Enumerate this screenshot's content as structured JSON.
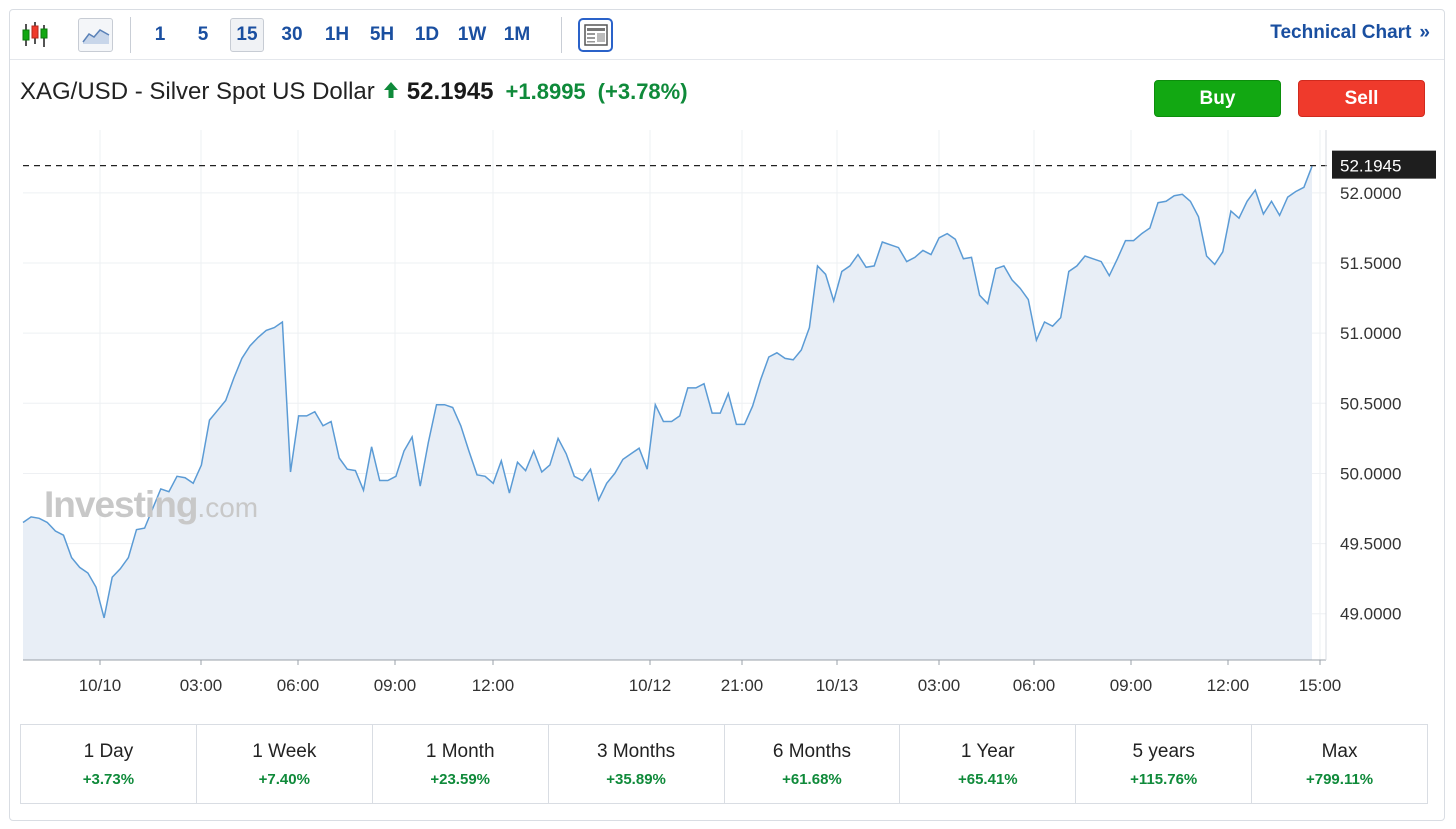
{
  "toolbar": {
    "intervals": [
      "1",
      "5",
      "15",
      "30",
      "1H",
      "5H",
      "1D",
      "1W",
      "1M"
    ],
    "active_interval": "15",
    "technical_chart_label": "Technical Chart",
    "technical_chart_arrow": "»",
    "icons": [
      "candlestick-icon",
      "area-chart-icon",
      "news-layout-icon"
    ]
  },
  "instrument": {
    "name": "XAG/USD - Silver Spot US Dollar",
    "price": "52.1945",
    "change": "+1.8995",
    "change_pct": "(+3.78%)",
    "direction_icon": "up-arrow-icon"
  },
  "actions": {
    "buy_label": "Buy",
    "sell_label": "Sell"
  },
  "watermark": {
    "brand": "Investing",
    "suffix": ".com"
  },
  "colors": {
    "line": "#5b9bd5",
    "fill": "#e8eef6",
    "positive": "#0f8a3a",
    "buy": "#12a812",
    "sell": "#ef3a2c",
    "link": "#1a4fa0"
  },
  "chart_data": {
    "type": "area",
    "title": "",
    "xlabel": "",
    "ylabel": "",
    "ylim": [
      48.67,
      52.42
    ],
    "grid": true,
    "y_ticks": [
      "49.0000",
      "49.5000",
      "50.0000",
      "50.5000",
      "51.0000",
      "51.5000",
      "52.0000"
    ],
    "x_ticks": [
      "10/10",
      "03:00",
      "06:00",
      "09:00",
      "12:00",
      "10/12",
      "21:00",
      "10/13",
      "03:00",
      "06:00",
      "09:00",
      "12:00",
      "15:00"
    ],
    "last_value": "52.1945",
    "series": [
      {
        "values": [
          49.65,
          49.69,
          49.68,
          49.65,
          49.59,
          49.56,
          49.4,
          49.33,
          49.29,
          49.19,
          48.97,
          49.26,
          49.32,
          49.4,
          49.6,
          49.61,
          49.75,
          49.89,
          49.87,
          49.98,
          49.97,
          49.93,
          50.06,
          50.38,
          50.45,
          50.52,
          50.68,
          50.82,
          50.91,
          50.97,
          51.02,
          51.04,
          51.08,
          50.01,
          50.41,
          50.41,
          50.44,
          50.34,
          50.37,
          50.11,
          50.03,
          50.02,
          49.88,
          50.19,
          49.95,
          49.95,
          49.98,
          50.16,
          50.26,
          49.91,
          50.22,
          50.49,
          50.49,
          50.47,
          50.34,
          50.16,
          49.99,
          49.98,
          49.93,
          50.09,
          49.86,
          50.08,
          50.02,
          50.16,
          50.01,
          50.06,
          50.25,
          50.14,
          49.98,
          49.95,
          50.03,
          49.81,
          49.93,
          50.0,
          50.1,
          50.14,
          50.18,
          50.03,
          50.49,
          50.37,
          50.37,
          50.41,
          50.61,
          50.61,
          50.64,
          50.43,
          50.43,
          50.57,
          50.35,
          50.35,
          50.48,
          50.67,
          50.83,
          50.86,
          50.82,
          50.81,
          50.88,
          51.04,
          51.48,
          51.42,
          51.23,
          51.44,
          51.48,
          51.56,
          51.47,
          51.48,
          51.65,
          51.63,
          51.61,
          51.51,
          51.54,
          51.59,
          51.56,
          51.68,
          51.71,
          51.67,
          51.53,
          51.54,
          51.27,
          51.21,
          51.46,
          51.48,
          51.38,
          51.32,
          51.24,
          50.95,
          51.08,
          51.05,
          51.11,
          51.44,
          51.48,
          51.55,
          51.53,
          51.51,
          51.41,
          51.53,
          51.66,
          51.66,
          51.71,
          51.75,
          51.93,
          51.94,
          51.98,
          51.99,
          51.94,
          51.83,
          51.55,
          51.49,
          51.58,
          51.87,
          51.82,
          51.94,
          52.02,
          51.85,
          51.94,
          51.84,
          51.97,
          52.01,
          52.04,
          52.19
        ]
      }
    ]
  },
  "performance": [
    {
      "label": "1 Day",
      "value": "+3.73%"
    },
    {
      "label": "1 Week",
      "value": "+7.40%"
    },
    {
      "label": "1 Month",
      "value": "+23.59%"
    },
    {
      "label": "3 Months",
      "value": "+35.89%"
    },
    {
      "label": "6 Months",
      "value": "+61.68%"
    },
    {
      "label": "1 Year",
      "value": "+65.41%"
    },
    {
      "label": "5 years",
      "value": "+115.76%"
    },
    {
      "label": "Max",
      "value": "+799.11%"
    }
  ]
}
